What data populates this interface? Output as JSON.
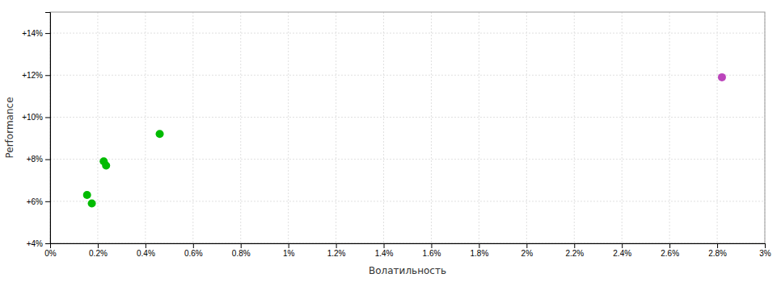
{
  "chart_data": {
    "type": "scatter",
    "xlabel": "Волатильность",
    "ylabel": "Performance",
    "xlim": [
      0.0,
      0.03
    ],
    "ylim": [
      0.04,
      0.15
    ],
    "xticks": [
      {
        "value": 0.0,
        "label": "0%"
      },
      {
        "value": 0.002,
        "label": "0.2%"
      },
      {
        "value": 0.004,
        "label": "0.4%"
      },
      {
        "value": 0.006,
        "label": "0.6%"
      },
      {
        "value": 0.008,
        "label": "0.8%"
      },
      {
        "value": 0.01,
        "label": "1%"
      },
      {
        "value": 0.012,
        "label": "1.2%"
      },
      {
        "value": 0.014,
        "label": "1.4%"
      },
      {
        "value": 0.016,
        "label": "1.6%"
      },
      {
        "value": 0.018,
        "label": "1.8%"
      },
      {
        "value": 0.02,
        "label": "2%"
      },
      {
        "value": 0.022,
        "label": "2.2%"
      },
      {
        "value": 0.024,
        "label": "2.4%"
      },
      {
        "value": 0.026,
        "label": "2.6%"
      },
      {
        "value": 0.028,
        "label": "2.8%"
      },
      {
        "value": 0.03,
        "label": "3%"
      }
    ],
    "yticks": [
      {
        "value": 0.04,
        "label": "+4%"
      },
      {
        "value": 0.06,
        "label": "+6%"
      },
      {
        "value": 0.08,
        "label": "+8%"
      },
      {
        "value": 0.1,
        "label": "+10%"
      },
      {
        "value": 0.12,
        "label": "+12%"
      },
      {
        "value": 0.14,
        "label": "+14%"
      }
    ],
    "grid": true,
    "series": [
      {
        "color": "#00bb00",
        "x": [
          0.00155,
          0.00175,
          0.00225,
          0.00235,
          0.0046
        ],
        "values": [
          0.063,
          0.059,
          0.079,
          0.077,
          0.092
        ]
      },
      {
        "color": "#bb44bb",
        "x": [
          0.0282
        ],
        "values": [
          0.119
        ]
      }
    ]
  }
}
